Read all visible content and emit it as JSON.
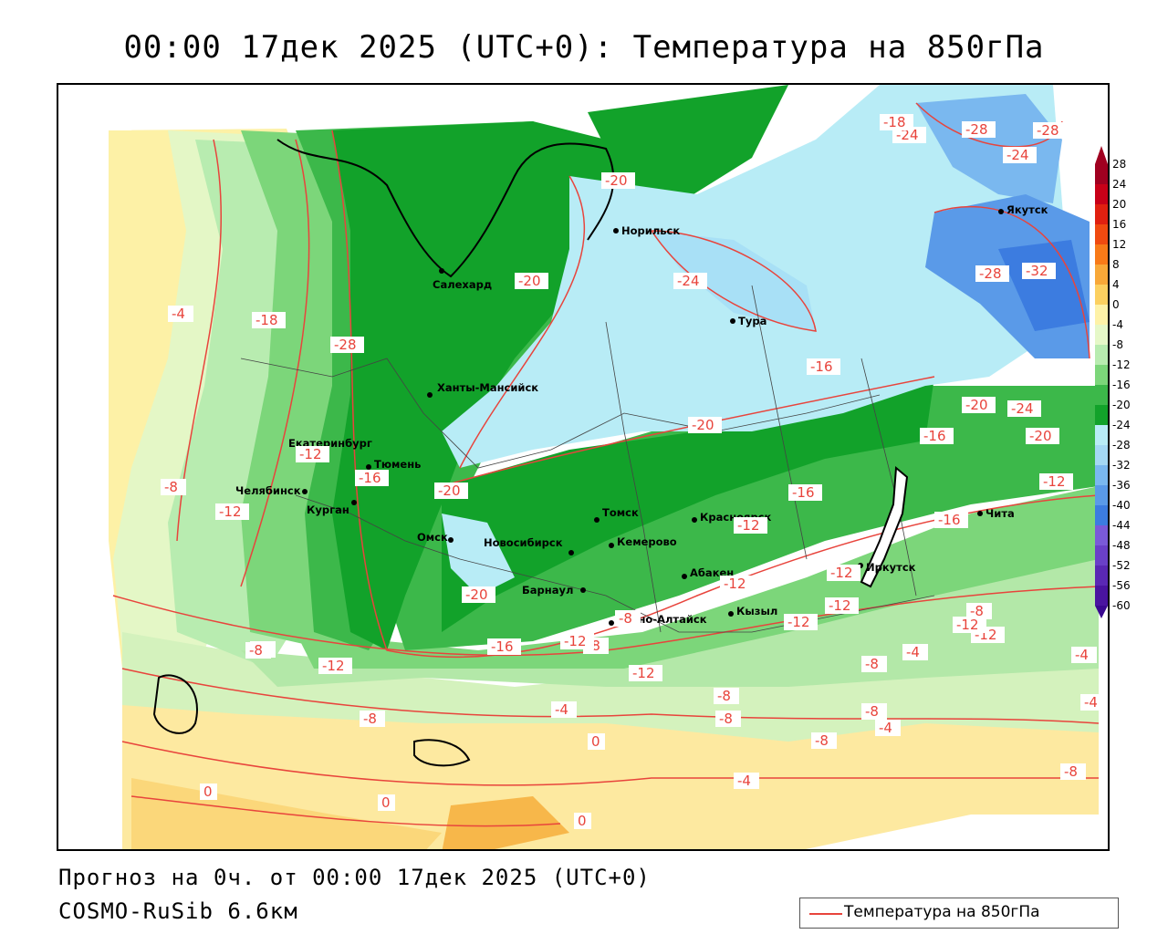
{
  "title": "00:00 17дек 2025 (UTC+0): Температура на 850гПа",
  "footer": {
    "forecast": "Прогноз на 0ч. от 00:00 17дек 2025 (UTC+0)",
    "model": "COSMO-RuSib 6.6км"
  },
  "legend": {
    "line_label": "Температура на 850гПа",
    "line_color": "#e8443c"
  },
  "colorbar": {
    "levels": [
      "28",
      "24",
      "20",
      "16",
      "12",
      "8",
      "4",
      "0",
      "-4",
      "-8",
      "-12",
      "-16",
      "-20",
      "-24",
      "-28",
      "-32",
      "-36",
      "-40",
      "-44",
      "-48",
      "-52",
      "-56",
      "-60"
    ],
    "colors": [
      "#a00020",
      "#c80018",
      "#e02010",
      "#f04a10",
      "#f87a18",
      "#f8a838",
      "#fcd060",
      "#fef2a8",
      "#e6f8c8",
      "#b8ecb0",
      "#7cd67a",
      "#3cb84a",
      "#12a22a",
      "#b8ecf6",
      "#a4d8f4",
      "#7ab8ef",
      "#5a9ae8",
      "#3c7ce0",
      "#7a5ad8",
      "#6a40c8",
      "#5a28b4",
      "#4a14a0",
      "#3a0890"
    ]
  },
  "cities": [
    {
      "name": "Норильск"
    },
    {
      "name": "Салехард"
    },
    {
      "name": "Тура"
    },
    {
      "name": "Якутск"
    },
    {
      "name": "Ханты-Мансийск"
    },
    {
      "name": "Екатеринбург"
    },
    {
      "name": "Тюмень"
    },
    {
      "name": "Челябинск"
    },
    {
      "name": "Курган"
    },
    {
      "name": "Омск"
    },
    {
      "name": "Новосибирск"
    },
    {
      "name": "Томск"
    },
    {
      "name": "Кемерово"
    },
    {
      "name": "Барнаул"
    },
    {
      "name": "Красноярск"
    },
    {
      "name": "Абакен"
    },
    {
      "name": "Кызыл"
    },
    {
      "name": "Горно-Алтайск"
    },
    {
      "name": "Иркутск"
    },
    {
      "name": "Чита"
    }
  ],
  "contour_labels": [
    "-20",
    "-24",
    "-28",
    "-28",
    "-24",
    "-18",
    "-24",
    "-32",
    "-28",
    "-4",
    "-18",
    "-28",
    "-16",
    "-20",
    "-20",
    "-20",
    "-24",
    "-20",
    "-16",
    "-12",
    "-16",
    "-20",
    "-8",
    "-12",
    "-16",
    "-12",
    "-12",
    "-16",
    "-20",
    "-12",
    "-12",
    "-12",
    "-12",
    "-8",
    "-12",
    "-8",
    "-8",
    "-12",
    "-8",
    "-8",
    "-16",
    "-12",
    "-8",
    "-4",
    "-8",
    "-4",
    "-8",
    "-4",
    "-8",
    "0",
    "-4",
    "-8",
    "-4",
    "0",
    "0",
    "0",
    "-8",
    "-4",
    "-12",
    "-12",
    "-8"
  ]
}
